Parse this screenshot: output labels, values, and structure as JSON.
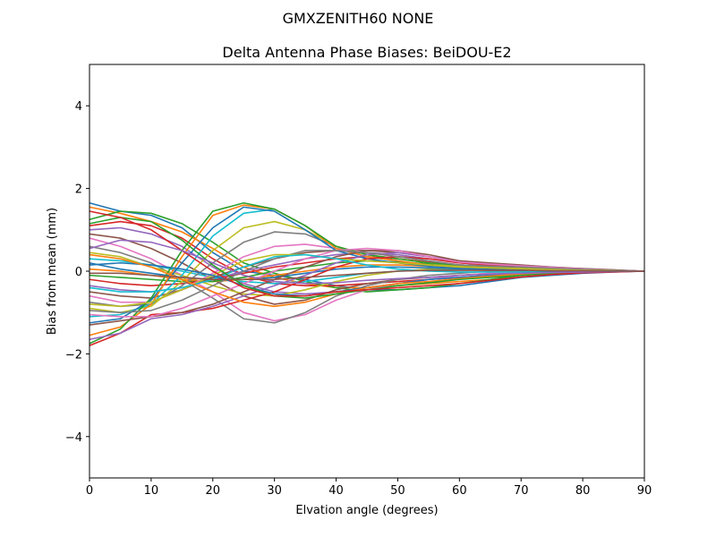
{
  "chart_data": {
    "type": "line",
    "suptitle": "GMXZENITH60     NONE",
    "title": "Delta Antenna Phase Biases: BeiDOU-E2",
    "xlabel": "Elvation angle (degrees)",
    "ylabel": "Bias from mean (mm)",
    "xlim": [
      0,
      90
    ],
    "ylim": [
      -5,
      5
    ],
    "xticks": [
      0,
      10,
      20,
      30,
      40,
      50,
      60,
      70,
      80,
      90
    ],
    "yticks": [
      -4,
      -2,
      0,
      2,
      4
    ],
    "grid": false,
    "legend": "none",
    "x": [
      0,
      5,
      10,
      15,
      20,
      25,
      30,
      35,
      40,
      45,
      50,
      55,
      60,
      65,
      70,
      75,
      80,
      85,
      90
    ],
    "series": [
      {
        "values": [
          1.65,
          1.45,
          1.35,
          1.05,
          0.45,
          0.0,
          -0.1,
          -0.2,
          -0.35,
          -0.45,
          -0.45,
          -0.4,
          -0.35,
          -0.25,
          -0.15,
          -0.1,
          -0.05,
          -0.02,
          0.0
        ]
      },
      {
        "values": [
          1.55,
          1.4,
          1.2,
          0.95,
          0.55,
          0.1,
          -0.15,
          -0.3,
          -0.4,
          -0.4,
          -0.35,
          -0.3,
          -0.25,
          -0.2,
          -0.1,
          -0.05,
          -0.02,
          0.0,
          0.0
        ]
      },
      {
        "values": [
          1.25,
          1.45,
          1.4,
          1.15,
          0.7,
          0.2,
          -0.05,
          -0.25,
          -0.4,
          -0.5,
          -0.45,
          -0.4,
          -0.3,
          -0.2,
          -0.1,
          -0.05,
          -0.02,
          0.0,
          0.0
        ]
      },
      {
        "values": [
          1.1,
          1.2,
          1.1,
          0.8,
          0.3,
          -0.1,
          -0.3,
          -0.35,
          -0.35,
          -0.3,
          -0.25,
          -0.2,
          -0.15,
          -0.1,
          -0.05,
          -0.02,
          0.0,
          0.0,
          0.0
        ]
      },
      {
        "values": [
          1.0,
          1.05,
          0.9,
          0.6,
          0.1,
          -0.3,
          -0.5,
          -0.55,
          -0.5,
          -0.4,
          -0.3,
          -0.2,
          -0.15,
          -0.1,
          -0.05,
          -0.02,
          0.0,
          0.0,
          0.0
        ]
      },
      {
        "values": [
          0.9,
          0.8,
          0.55,
          0.2,
          -0.2,
          -0.6,
          -0.8,
          -0.7,
          -0.45,
          -0.3,
          -0.2,
          -0.15,
          -0.1,
          -0.05,
          -0.02,
          0.0,
          0.0,
          0.0,
          0.0
        ]
      },
      {
        "values": [
          0.8,
          0.6,
          0.3,
          -0.1,
          -0.5,
          -1.0,
          -1.2,
          -1.05,
          -0.7,
          -0.45,
          -0.3,
          -0.2,
          -0.1,
          -0.05,
          -0.02,
          0.0,
          0.0,
          0.0,
          0.0
        ]
      },
      {
        "values": [
          0.6,
          0.45,
          0.2,
          -0.2,
          -0.65,
          -1.15,
          -1.25,
          -1.0,
          -0.6,
          -0.35,
          -0.2,
          -0.1,
          -0.05,
          0.0,
          0.0,
          0.0,
          0.0,
          0.0,
          0.0
        ]
      },
      {
        "values": [
          0.45,
          0.35,
          0.1,
          -0.1,
          -0.35,
          -0.55,
          -0.6,
          -0.45,
          -0.25,
          -0.1,
          0.0,
          0.05,
          0.05,
          0.05,
          0.05,
          0.03,
          0.02,
          0.01,
          0.0
        ]
      },
      {
        "values": [
          0.3,
          0.25,
          0.15,
          0.0,
          -0.15,
          -0.25,
          -0.3,
          -0.25,
          -0.15,
          -0.05,
          0.0,
          0.02,
          0.03,
          0.03,
          0.02,
          0.02,
          0.01,
          0.0,
          0.0
        ]
      },
      {
        "values": [
          0.2,
          0.05,
          -0.05,
          -0.15,
          -0.2,
          -0.2,
          -0.15,
          -0.05,
          0.05,
          0.1,
          0.1,
          0.08,
          0.06,
          0.05,
          0.04,
          0.03,
          0.02,
          0.01,
          0.0
        ]
      },
      {
        "values": [
          0.05,
          0.0,
          -0.1,
          -0.2,
          -0.25,
          -0.2,
          -0.1,
          0.0,
          0.1,
          0.15,
          0.15,
          0.12,
          0.1,
          0.08,
          0.06,
          0.04,
          0.02,
          0.01,
          0.0
        ]
      },
      {
        "values": [
          -0.1,
          -0.15,
          -0.2,
          -0.25,
          -0.25,
          -0.15,
          0.0,
          0.1,
          0.2,
          0.25,
          0.22,
          0.18,
          0.12,
          0.1,
          0.08,
          0.05,
          0.03,
          0.01,
          0.0
        ]
      },
      {
        "values": [
          -0.2,
          -0.3,
          -0.35,
          -0.3,
          -0.2,
          -0.05,
          0.1,
          0.2,
          0.3,
          0.35,
          0.3,
          0.22,
          0.15,
          0.12,
          0.1,
          0.07,
          0.04,
          0.02,
          0.0
        ]
      },
      {
        "values": [
          -0.35,
          -0.45,
          -0.5,
          -0.4,
          -0.2,
          0.0,
          0.15,
          0.3,
          0.4,
          0.45,
          0.4,
          0.3,
          0.2,
          0.15,
          0.12,
          0.08,
          0.05,
          0.02,
          0.0
        ]
      },
      {
        "values": [
          -0.5,
          -0.6,
          -0.65,
          -0.45,
          -0.15,
          0.1,
          0.3,
          0.45,
          0.5,
          0.5,
          0.45,
          0.35,
          0.22,
          0.15,
          0.12,
          0.08,
          0.05,
          0.02,
          0.0
        ]
      },
      {
        "values": [
          -0.6,
          -0.75,
          -0.75,
          -0.45,
          -0.05,
          0.35,
          0.6,
          0.65,
          0.55,
          0.45,
          0.35,
          0.25,
          0.15,
          0.12,
          0.1,
          0.07,
          0.04,
          0.02,
          0.0
        ]
      },
      {
        "values": [
          -0.75,
          -0.85,
          -0.8,
          -0.35,
          0.2,
          0.7,
          0.95,
          0.9,
          0.6,
          0.4,
          0.3,
          0.2,
          0.12,
          0.1,
          0.08,
          0.05,
          0.03,
          0.01,
          0.0
        ]
      },
      {
        "values": [
          -0.9,
          -1.0,
          -0.85,
          -0.25,
          0.5,
          1.05,
          1.2,
          1.0,
          0.6,
          0.4,
          0.3,
          0.2,
          0.12,
          0.1,
          0.08,
          0.05,
          0.03,
          0.01,
          0.0
        ]
      },
      {
        "values": [
          -1.1,
          -1.05,
          -0.8,
          -0.1,
          0.85,
          1.4,
          1.5,
          1.1,
          0.55,
          0.35,
          0.25,
          0.15,
          0.1,
          0.08,
          0.06,
          0.04,
          0.02,
          0.01,
          0.0
        ]
      },
      {
        "values": [
          -1.25,
          -1.15,
          -0.7,
          0.2,
          1.05,
          1.55,
          1.45,
          1.0,
          0.5,
          0.3,
          0.2,
          0.12,
          0.08,
          0.06,
          0.05,
          0.03,
          0.02,
          0.01,
          0.0
        ]
      },
      {
        "values": [
          -1.55,
          -1.35,
          -0.8,
          0.35,
          1.35,
          1.6,
          1.5,
          1.1,
          0.55,
          0.35,
          0.25,
          0.15,
          0.1,
          0.08,
          0.06,
          0.04,
          0.02,
          0.01,
          0.0
        ]
      },
      {
        "values": [
          -1.75,
          -1.4,
          -0.65,
          0.5,
          1.45,
          1.65,
          1.5,
          1.1,
          0.6,
          0.4,
          0.3,
          0.2,
          0.15,
          0.12,
          0.1,
          0.07,
          0.04,
          0.02,
          0.0
        ]
      },
      {
        "values": [
          -1.8,
          -1.5,
          -1.05,
          -1.0,
          -0.9,
          -0.7,
          -0.5,
          -0.2,
          0.1,
          0.3,
          0.35,
          0.3,
          0.2,
          0.15,
          0.12,
          0.08,
          0.05,
          0.02,
          0.0
        ]
      },
      {
        "values": [
          -1.65,
          -1.5,
          -1.15,
          -1.05,
          -0.85,
          -0.6,
          -0.35,
          -0.1,
          0.2,
          0.4,
          0.45,
          0.35,
          0.25,
          0.18,
          0.14,
          0.1,
          0.06,
          0.03,
          0.0
        ]
      },
      {
        "values": [
          -1.3,
          -1.2,
          -1.1,
          -1.0,
          -0.8,
          -0.5,
          -0.2,
          0.1,
          0.35,
          0.5,
          0.5,
          0.4,
          0.25,
          0.2,
          0.15,
          0.1,
          0.06,
          0.03,
          0.0
        ]
      },
      {
        "values": [
          -1.05,
          -1.1,
          -1.1,
          -0.9,
          -0.6,
          -0.3,
          0.0,
          0.3,
          0.5,
          0.55,
          0.5,
          0.35,
          0.22,
          0.17,
          0.13,
          0.09,
          0.05,
          0.02,
          0.0
        ]
      },
      {
        "values": [
          -0.95,
          -1.0,
          -0.95,
          -0.7,
          -0.35,
          0.0,
          0.3,
          0.5,
          0.5,
          0.45,
          0.35,
          0.25,
          0.15,
          0.12,
          0.1,
          0.07,
          0.04,
          0.02,
          0.0
        ]
      },
      {
        "values": [
          -0.8,
          -0.85,
          -0.75,
          -0.45,
          -0.1,
          0.25,
          0.4,
          0.4,
          0.3,
          0.25,
          0.2,
          0.15,
          0.1,
          0.08,
          0.06,
          0.04,
          0.02,
          0.01,
          0.0
        ]
      },
      {
        "values": [
          -0.4,
          -0.5,
          -0.5,
          -0.4,
          -0.2,
          0.1,
          0.35,
          0.4,
          0.3,
          0.15,
          0.05,
          0.0,
          -0.02,
          -0.02,
          -0.02,
          -0.01,
          0.0,
          0.0,
          0.0
        ]
      },
      {
        "values": [
          0.15,
          0.2,
          0.15,
          0.05,
          -0.1,
          -0.35,
          -0.55,
          -0.6,
          -0.5,
          -0.4,
          -0.3,
          -0.2,
          -0.15,
          -0.1,
          -0.05,
          -0.02,
          0.0,
          0.0,
          0.0
        ]
      },
      {
        "values": [
          0.4,
          0.3,
          0.1,
          -0.2,
          -0.5,
          -0.75,
          -0.85,
          -0.75,
          -0.55,
          -0.4,
          -0.3,
          -0.25,
          -0.18,
          -0.12,
          -0.07,
          -0.04,
          -0.02,
          -0.01,
          0.0
        ]
      },
      {
        "values": [
          1.15,
          1.3,
          1.2,
          0.75,
          0.15,
          -0.35,
          -0.6,
          -0.65,
          -0.55,
          -0.45,
          -0.35,
          -0.28,
          -0.2,
          -0.15,
          -0.1,
          -0.06,
          -0.03,
          -0.01,
          0.0
        ]
      },
      {
        "values": [
          1.45,
          1.3,
          1.0,
          0.5,
          0.0,
          -0.4,
          -0.6,
          -0.6,
          -0.5,
          -0.45,
          -0.4,
          -0.35,
          -0.3,
          -0.22,
          -0.14,
          -0.08,
          -0.04,
          -0.02,
          0.0
        ]
      },
      {
        "values": [
          0.55,
          0.75,
          0.7,
          0.5,
          0.2,
          -0.1,
          -0.25,
          -0.3,
          -0.28,
          -0.22,
          -0.18,
          -0.15,
          -0.1,
          -0.07,
          -0.05,
          -0.03,
          -0.02,
          -0.01,
          0.0
        ]
      },
      {
        "values": [
          -0.05,
          -0.05,
          -0.1,
          -0.15,
          -0.2,
          -0.2,
          -0.2,
          -0.15,
          -0.1,
          -0.05,
          0.0,
          0.02,
          0.02,
          0.02,
          0.02,
          0.01,
          0.01,
          0.0,
          0.0
        ]
      }
    ],
    "colors": [
      "#1f77b4",
      "#ff7f0e",
      "#2ca02c",
      "#d62728",
      "#9467bd",
      "#8c564b",
      "#e377c2",
      "#7f7f7f",
      "#bcbd22",
      "#17becf"
    ]
  }
}
